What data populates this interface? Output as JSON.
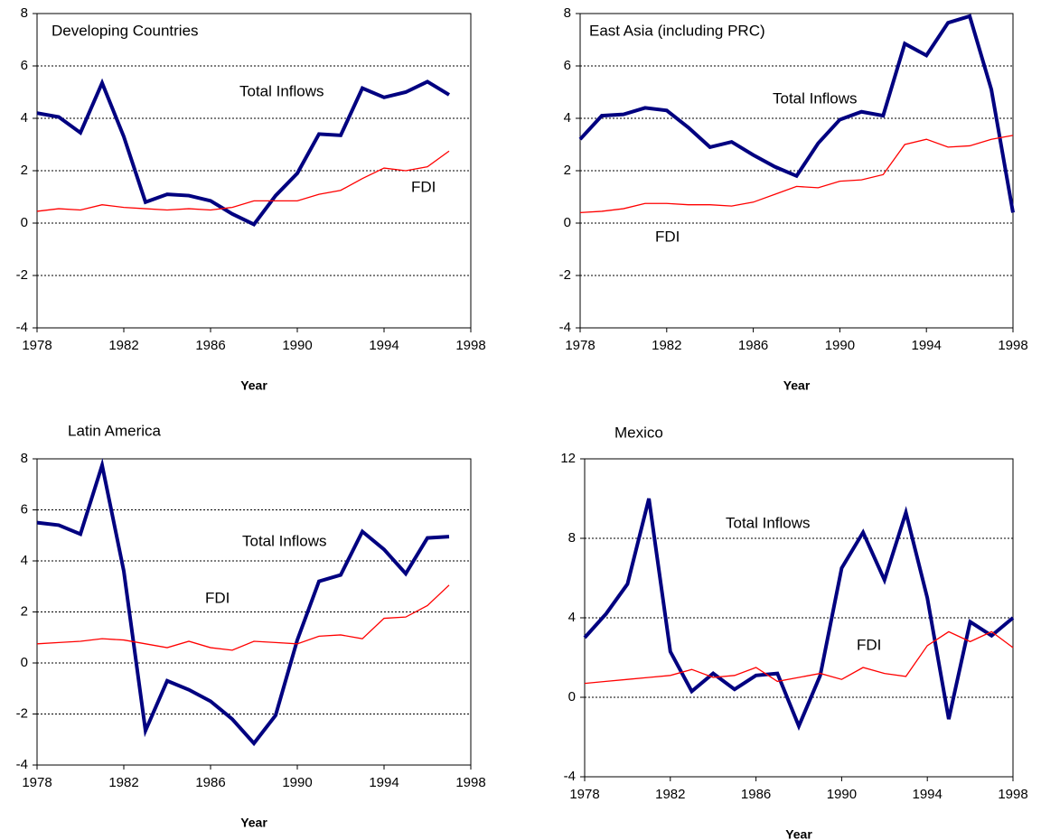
{
  "chart_data": [
    {
      "type": "line",
      "title": "Developing Countries",
      "xlabel": "Year",
      "x": [
        1978,
        1979,
        1980,
        1981,
        1982,
        1983,
        1984,
        1985,
        1986,
        1987,
        1988,
        1989,
        1990,
        1991,
        1992,
        1993,
        1994,
        1995,
        1996,
        1997
      ],
      "series": [
        {
          "name": "Total Inflows",
          "color": "#000080",
          "values": [
            4.2,
            4.05,
            3.45,
            5.35,
            3.3,
            0.8,
            1.1,
            1.05,
            0.85,
            0.35,
            -0.05,
            1.05,
            1.9,
            3.4,
            3.35,
            5.15,
            4.8,
            5.0,
            5.4,
            4.9
          ]
        },
        {
          "name": "FDI",
          "color": "#ff0000",
          "values": [
            0.45,
            0.55,
            0.5,
            0.7,
            0.6,
            0.55,
            0.5,
            0.55,
            0.5,
            0.6,
            0.85,
            0.85,
            0.85,
            1.1,
            1.25,
            1.7,
            2.1,
            2.0,
            2.15,
            2.75
          ]
        }
      ],
      "xlim": [
        1978,
        1998
      ],
      "xticks": [
        1978,
        1982,
        1986,
        1990,
        1994,
        1998
      ],
      "ylim": [
        -4,
        8
      ],
      "yticks": [
        -4,
        -2,
        0,
        2,
        4,
        6,
        8
      ],
      "grid": true
    },
    {
      "type": "line",
      "title": "East Asia (including PRC)",
      "xlabel": "Year",
      "x": [
        1978,
        1979,
        1980,
        1981,
        1982,
        1983,
        1984,
        1985,
        1986,
        1987,
        1988,
        1989,
        1990,
        1991,
        1992,
        1993,
        1994,
        1995,
        1996,
        1997,
        1998
      ],
      "series": [
        {
          "name": "Total Inflows",
          "color": "#000080",
          "values": [
            3.2,
            4.1,
            4.15,
            4.4,
            4.3,
            3.65,
            2.9,
            3.1,
            2.6,
            2.15,
            1.8,
            3.05,
            3.95,
            4.25,
            4.1,
            6.85,
            6.4,
            7.65,
            7.9,
            5.1,
            0.4
          ]
        },
        {
          "name": "FDI",
          "color": "#ff0000",
          "values": [
            0.4,
            0.45,
            0.55,
            0.75,
            0.75,
            0.7,
            0.7,
            0.65,
            0.8,
            1.1,
            1.4,
            1.35,
            1.6,
            1.65,
            1.85,
            3.0,
            3.2,
            2.9,
            2.95,
            3.2,
            3.35
          ]
        }
      ],
      "xlim": [
        1978,
        1998
      ],
      "xticks": [
        1978,
        1982,
        1986,
        1990,
        1994,
        1998
      ],
      "ylim": [
        -4,
        8
      ],
      "yticks": [
        -4,
        -2,
        0,
        2,
        4,
        6,
        8
      ],
      "grid": true
    },
    {
      "type": "line",
      "title": "Latin America",
      "xlabel": "Year",
      "x": [
        1978,
        1979,
        1980,
        1981,
        1982,
        1983,
        1984,
        1985,
        1986,
        1987,
        1988,
        1989,
        1990,
        1991,
        1992,
        1993,
        1994,
        1995,
        1996,
        1997
      ],
      "series": [
        {
          "name": "Total Inflows",
          "color": "#000080",
          "values": [
            5.5,
            5.4,
            5.05,
            7.75,
            3.6,
            -2.65,
            -0.7,
            -1.05,
            -1.5,
            -2.2,
            -3.15,
            -2.05,
            0.9,
            3.2,
            3.45,
            5.15,
            4.45,
            3.5,
            4.9,
            4.95
          ]
        },
        {
          "name": "FDI",
          "color": "#ff0000",
          "values": [
            0.75,
            0.8,
            0.85,
            0.95,
            0.9,
            0.75,
            0.6,
            0.85,
            0.6,
            0.5,
            0.85,
            0.8,
            0.75,
            1.05,
            1.1,
            0.95,
            1.75,
            1.8,
            2.25,
            3.05
          ]
        }
      ],
      "xlim": [
        1978,
        1998
      ],
      "xticks": [
        1978,
        1982,
        1986,
        1990,
        1994,
        1998
      ],
      "ylim": [
        -4,
        8
      ],
      "yticks": [
        -4,
        -2,
        0,
        2,
        4,
        6,
        8
      ],
      "grid": true
    },
    {
      "type": "line",
      "title": "Mexico",
      "xlabel": "Year",
      "x": [
        1978,
        1979,
        1980,
        1981,
        1982,
        1983,
        1984,
        1985,
        1986,
        1987,
        1988,
        1989,
        1990,
        1991,
        1992,
        1993,
        1994,
        1995,
        1996,
        1997,
        1998
      ],
      "series": [
        {
          "name": "Total Inflows",
          "color": "#000080",
          "values": [
            3.0,
            4.2,
            5.7,
            10.0,
            2.3,
            0.3,
            1.2,
            0.4,
            1.1,
            1.2,
            -1.45,
            1.1,
            6.5,
            8.3,
            5.9,
            9.3,
            5.0,
            -1.1,
            3.8,
            3.1,
            4.0
          ]
        },
        {
          "name": "FDI",
          "color": "#ff0000",
          "values": [
            0.7,
            0.8,
            0.9,
            1.0,
            1.1,
            1.4,
            1.0,
            1.1,
            1.5,
            0.8,
            1.0,
            1.2,
            0.9,
            1.5,
            1.2,
            1.05,
            2.6,
            3.3,
            2.8,
            3.3,
            2.5
          ]
        }
      ],
      "xlim": [
        1978,
        1998
      ],
      "xticks": [
        1978,
        1982,
        1986,
        1990,
        1994,
        1998
      ],
      "ylim": [
        -4,
        12
      ],
      "yticks": [
        -4,
        0,
        4,
        8,
        12
      ],
      "grid": true
    }
  ]
}
